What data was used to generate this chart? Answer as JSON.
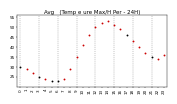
{
  "title": "Avg   (Temp e ure Max/H Per - 24H)",
  "hours": [
    0,
    1,
    2,
    3,
    4,
    5,
    6,
    7,
    8,
    9,
    10,
    11,
    12,
    13,
    14,
    15,
    16,
    17,
    18,
    19,
    20,
    21,
    22,
    23
  ],
  "temperatures": [
    30,
    29,
    27,
    25,
    24,
    23,
    23,
    24,
    29,
    35,
    41,
    46,
    50,
    52,
    53,
    51,
    49,
    46,
    43,
    40,
    37,
    35,
    34,
    36
  ],
  "dot_color": "#cc0000",
  "dot_color2": "#000000",
  "bg_color": "#ffffff",
  "grid_color": "#888888",
  "ylim": [
    20,
    56
  ],
  "title_fontsize": 4.0,
  "tick_fontsize": 3.0,
  "dot_size": 1.8,
  "dashed_hours": [
    0,
    3,
    6,
    9,
    12,
    15,
    18,
    21
  ],
  "black_dots": [
    0,
    3,
    5,
    6,
    17,
    21
  ]
}
